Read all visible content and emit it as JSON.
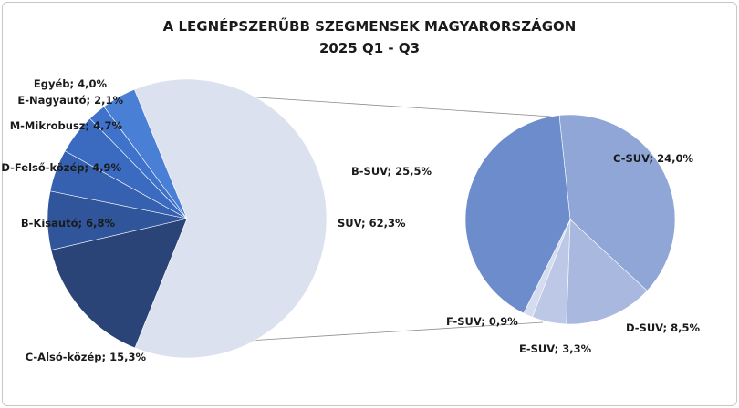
{
  "chart_data": {
    "type": "pie",
    "title": "A LEGNÉPSZERŰBB SZEGMENSEK MAGYARORSZÁGON",
    "subtitle": "2025 Q1 - Q3",
    "main_pie": {
      "slices": [
        {
          "label": "SUV; 62,3%",
          "value": 62.3,
          "color": "#dce1ef"
        },
        {
          "label": "C-Alsó-közép; 15,3%",
          "value": 15.3,
          "color": "#2a4478"
        },
        {
          "label": "B-Kisautó; 6,8%",
          "value": 6.8,
          "color": "#30559b"
        },
        {
          "label": "D-Felső-közép; 4,9%",
          "value": 4.9,
          "color": "#3561b0"
        },
        {
          "label": "M-Mikrobusz; 4,7%",
          "value": 4.7,
          "color": "#3a6bc0"
        },
        {
          "label": "E-Nagyautó; 2,1%",
          "value": 2.1,
          "color": "#3f72cb"
        },
        {
          "label": "Egyéb; 4,0%",
          "value": 4.0,
          "color": "#4a7fd6"
        }
      ]
    },
    "sub_pie": {
      "slices": [
        {
          "label": "C-SUV; 24,0%",
          "value": 24.0,
          "color": "#90a6d6"
        },
        {
          "label": "D-SUV; 8,5%",
          "value": 8.5,
          "color": "#a9b8df"
        },
        {
          "label": "E-SUV; 3,3%",
          "value": 3.3,
          "color": "#bcc8e6"
        },
        {
          "label": "F-SUV; 0,9%",
          "value": 0.9,
          "color": "#d6dcef"
        },
        {
          "label": "B-SUV; 25,5%",
          "value": 25.5,
          "color": "#6d8ccc"
        }
      ]
    }
  }
}
